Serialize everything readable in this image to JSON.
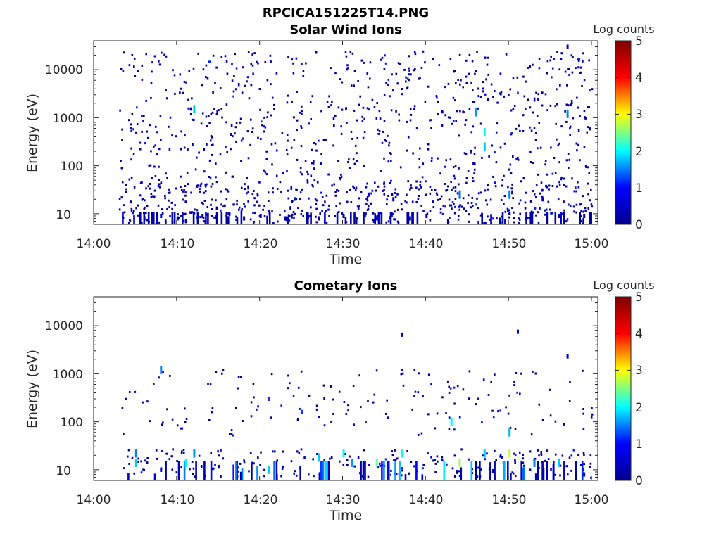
{
  "figure": {
    "title": "RPCICA151225T14.PNG"
  },
  "colorscale": {
    "name": "jet",
    "stops": [
      "#00008f",
      "#0000ff",
      "#00ffff",
      "#ffff00",
      "#ff0000",
      "#800000"
    ]
  },
  "chart_data": [
    {
      "type": "heatmap",
      "title": "Solar Wind Ions",
      "xlabel": "Time",
      "ylabel": "Energy (eV)",
      "x_ticks": [
        "14:00",
        "14:10",
        "14:20",
        "14:30",
        "14:40",
        "14:50",
        "15:00"
      ],
      "xlim": [
        "14:00",
        "15:00"
      ],
      "y_scale": "log",
      "y_ticks": [
        "10",
        "100",
        "1000",
        "10000"
      ],
      "ylim": [
        6,
        40000
      ],
      "colorbar": {
        "label": "Log counts",
        "ticks": [
          "0",
          "1",
          "2",
          "3",
          "4",
          "5"
        ],
        "range": [
          0,
          5
        ]
      },
      "data_start": "14:03",
      "cells": [
        {
          "time": "14:06",
          "energy": 8,
          "log_counts": 0.2
        },
        {
          "time": "14:07",
          "energy": 7,
          "log_counts": 0.2
        },
        {
          "time": "14:08",
          "energy": 9,
          "log_counts": 0.3
        },
        {
          "time": "14:10",
          "energy": 8,
          "log_counts": 0.2
        },
        {
          "time": "14:11",
          "energy": 7,
          "log_counts": 0.2
        },
        {
          "time": "14:12",
          "energy": 1500,
          "log_counts": 1.8
        },
        {
          "time": "14:13",
          "energy": 9,
          "log_counts": 0.2
        },
        {
          "time": "14:16",
          "energy": 8,
          "log_counts": 0.2
        },
        {
          "time": "14:18",
          "energy": 8,
          "log_counts": 0.3
        },
        {
          "time": "14:20",
          "energy": 9,
          "log_counts": 0.2
        },
        {
          "time": "14:23",
          "energy": 8,
          "log_counts": 0.3
        },
        {
          "time": "14:27",
          "energy": 8,
          "log_counts": 0.2
        },
        {
          "time": "14:30",
          "energy": 9,
          "log_counts": 0.2
        },
        {
          "time": "14:33",
          "energy": 25,
          "log_counts": 1.0
        },
        {
          "time": "14:34",
          "energy": 8,
          "log_counts": 0.4
        },
        {
          "time": "14:36",
          "energy": 20,
          "log_counts": 0.8
        },
        {
          "time": "14:38",
          "energy": 8,
          "log_counts": 0.2
        },
        {
          "time": "14:40",
          "energy": 9,
          "log_counts": 0.2
        },
        {
          "time": "14:44",
          "energy": 25,
          "log_counts": 1.4
        },
        {
          "time": "14:46",
          "energy": 1300,
          "log_counts": 1.6
        },
        {
          "time": "14:47",
          "energy": 500,
          "log_counts": 2.0
        },
        {
          "time": "14:47",
          "energy": 250,
          "log_counts": 1.8
        },
        {
          "time": "14:50",
          "energy": 25,
          "log_counts": 1.5
        },
        {
          "time": "14:52",
          "energy": 8,
          "log_counts": 0.3
        },
        {
          "time": "14:54",
          "energy": 20,
          "log_counts": 0.3
        },
        {
          "time": "14:56",
          "energy": 9,
          "log_counts": 0.2
        },
        {
          "time": "14:57",
          "energy": 1200,
          "log_counts": 1.5
        },
        {
          "time": "14:57",
          "energy": 30000,
          "log_counts": 0.4
        },
        {
          "time": "14:59",
          "energy": 9,
          "log_counts": 0.2
        }
      ]
    },
    {
      "type": "heatmap",
      "title": "Cometary Ions",
      "xlabel": "Time",
      "ylabel": "Energy (eV)",
      "x_ticks": [
        "14:00",
        "14:10",
        "14:20",
        "14:30",
        "14:40",
        "14:50",
        "15:00"
      ],
      "xlim": [
        "14:00",
        "15:00"
      ],
      "y_scale": "log",
      "y_ticks": [
        "10",
        "100",
        "1000",
        "10000"
      ],
      "ylim": [
        6,
        40000
      ],
      "colorbar": {
        "label": "Log counts",
        "ticks": [
          "0",
          "1",
          "2",
          "3",
          "4",
          "5"
        ],
        "range": [
          0,
          5
        ]
      },
      "data_start": "14:03",
      "cells": [
        {
          "time": "14:05",
          "energy": 14,
          "log_counts": 1.8
        },
        {
          "time": "14:05",
          "energy": 22,
          "log_counts": 1.5
        },
        {
          "time": "14:08",
          "energy": 10,
          "log_counts": 0.5
        },
        {
          "time": "14:08",
          "energy": 1200,
          "log_counts": 1.5
        },
        {
          "time": "14:11",
          "energy": 14,
          "log_counts": 2.0
        },
        {
          "time": "14:12",
          "energy": 22,
          "log_counts": 1.6
        },
        {
          "time": "14:21",
          "energy": 10,
          "log_counts": 1.8
        },
        {
          "time": "14:21",
          "energy": 300,
          "log_counts": 1.2
        },
        {
          "time": "14:25",
          "energy": 160,
          "log_counts": 1.2
        },
        {
          "time": "14:27",
          "energy": 18,
          "log_counts": 1.8
        },
        {
          "time": "14:30",
          "energy": 22,
          "log_counts": 2.0
        },
        {
          "time": "14:31",
          "energy": 14,
          "log_counts": 1.6
        },
        {
          "time": "14:34",
          "energy": 14,
          "log_counts": 2.4
        },
        {
          "time": "14:37",
          "energy": 22,
          "log_counts": 2.0
        },
        {
          "time": "14:37",
          "energy": 6500,
          "log_counts": 0.4
        },
        {
          "time": "14:43",
          "energy": 100,
          "log_counts": 2.0
        },
        {
          "time": "14:44",
          "energy": 14,
          "log_counts": 2.6
        },
        {
          "time": "14:47",
          "energy": 22,
          "log_counts": 1.8
        },
        {
          "time": "14:50",
          "energy": 22,
          "log_counts": 2.8
        },
        {
          "time": "14:50",
          "energy": 60,
          "log_counts": 1.7
        },
        {
          "time": "14:51",
          "energy": 7500,
          "log_counts": 0.4
        },
        {
          "time": "14:53",
          "energy": 14,
          "log_counts": 1.5
        },
        {
          "time": "14:56",
          "energy": 14,
          "log_counts": 1.8
        },
        {
          "time": "14:57",
          "energy": 2300,
          "log_counts": 0.4
        },
        {
          "time": "14:59",
          "energy": 8,
          "log_counts": 0.5
        }
      ]
    }
  ]
}
